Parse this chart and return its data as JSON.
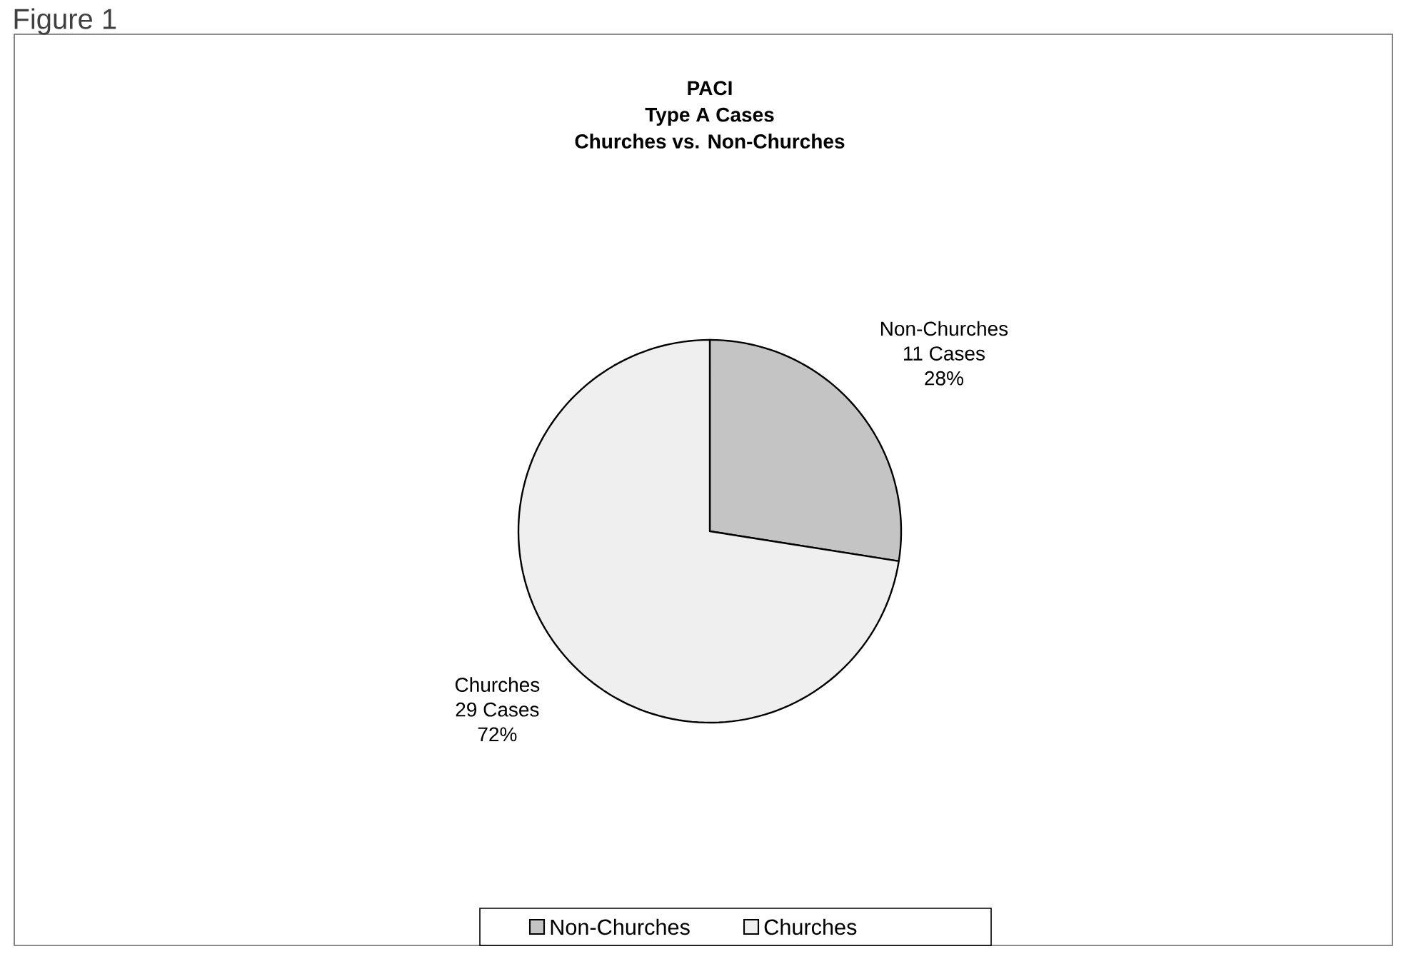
{
  "chart_data": {
    "type": "pie",
    "title": "PACI",
    "subtitle": "Type A Cases",
    "categories": [
      "Non-Churches",
      "Churches"
    ],
    "values": [
      11,
      29
    ],
    "colors": [
      "#c4c4c4",
      "#efefef"
    ],
    "value_labels": [
      "11 Cases",
      "29 Cases"
    ],
    "annotations": [
      "Churches vs. Non-Churches",
      "28%",
      "72%",
      "Figure 1"
    ],
    "legend": "bottom"
  }
}
